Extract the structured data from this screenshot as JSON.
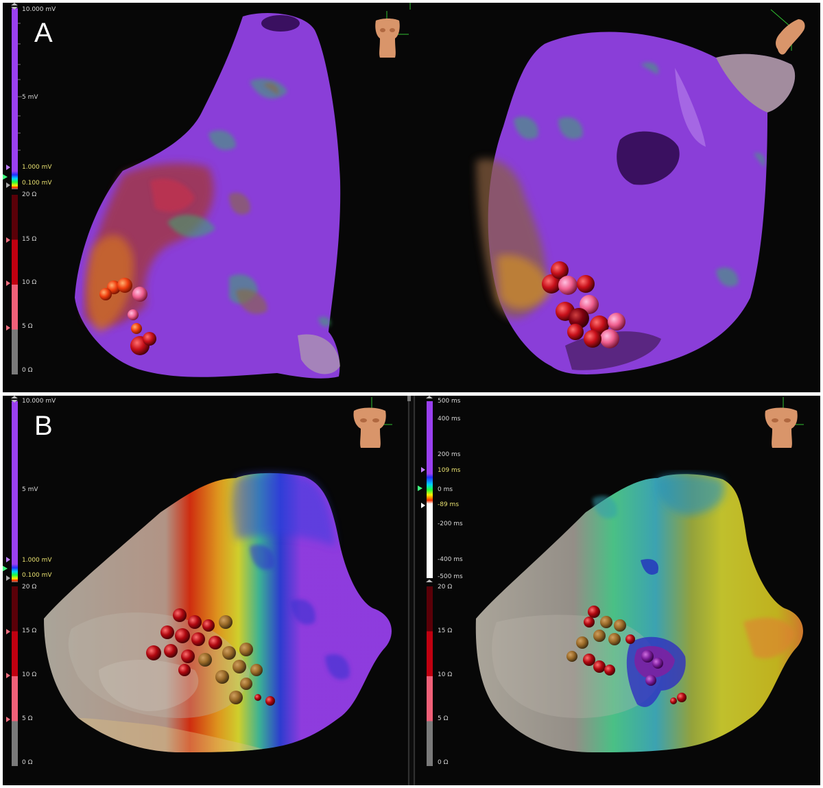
{
  "panels": {
    "a": {
      "label": "A"
    },
    "b": {
      "label": "B"
    }
  },
  "voltage_scale": {
    "max": "10.000 mV",
    "mid": "5 mV",
    "upper_threshold": "1.000 mV",
    "lower_threshold": "0.100 mV"
  },
  "impedance_scale": {
    "max": "20 Ω",
    "t15": "15 Ω",
    "t10": "10 Ω",
    "t5": "5 Ω",
    "min": "0 Ω"
  },
  "lat_scale": {
    "max": "500 ms",
    "t400": "400 ms",
    "t200": "200 ms",
    "upper": "109 ms",
    "zero": "0 ms",
    "lower": "-89 ms",
    "tm200": "-200 ms",
    "tm400": "-400 ms",
    "min": "-500 ms"
  },
  "colors": {
    "purple": "#9a40f0",
    "background": "#070707",
    "tissue_gray": "#b8b2a6",
    "lesion_red": "#c8101a",
    "lesion_pink": "#f06090",
    "torso": "#d9956a"
  }
}
